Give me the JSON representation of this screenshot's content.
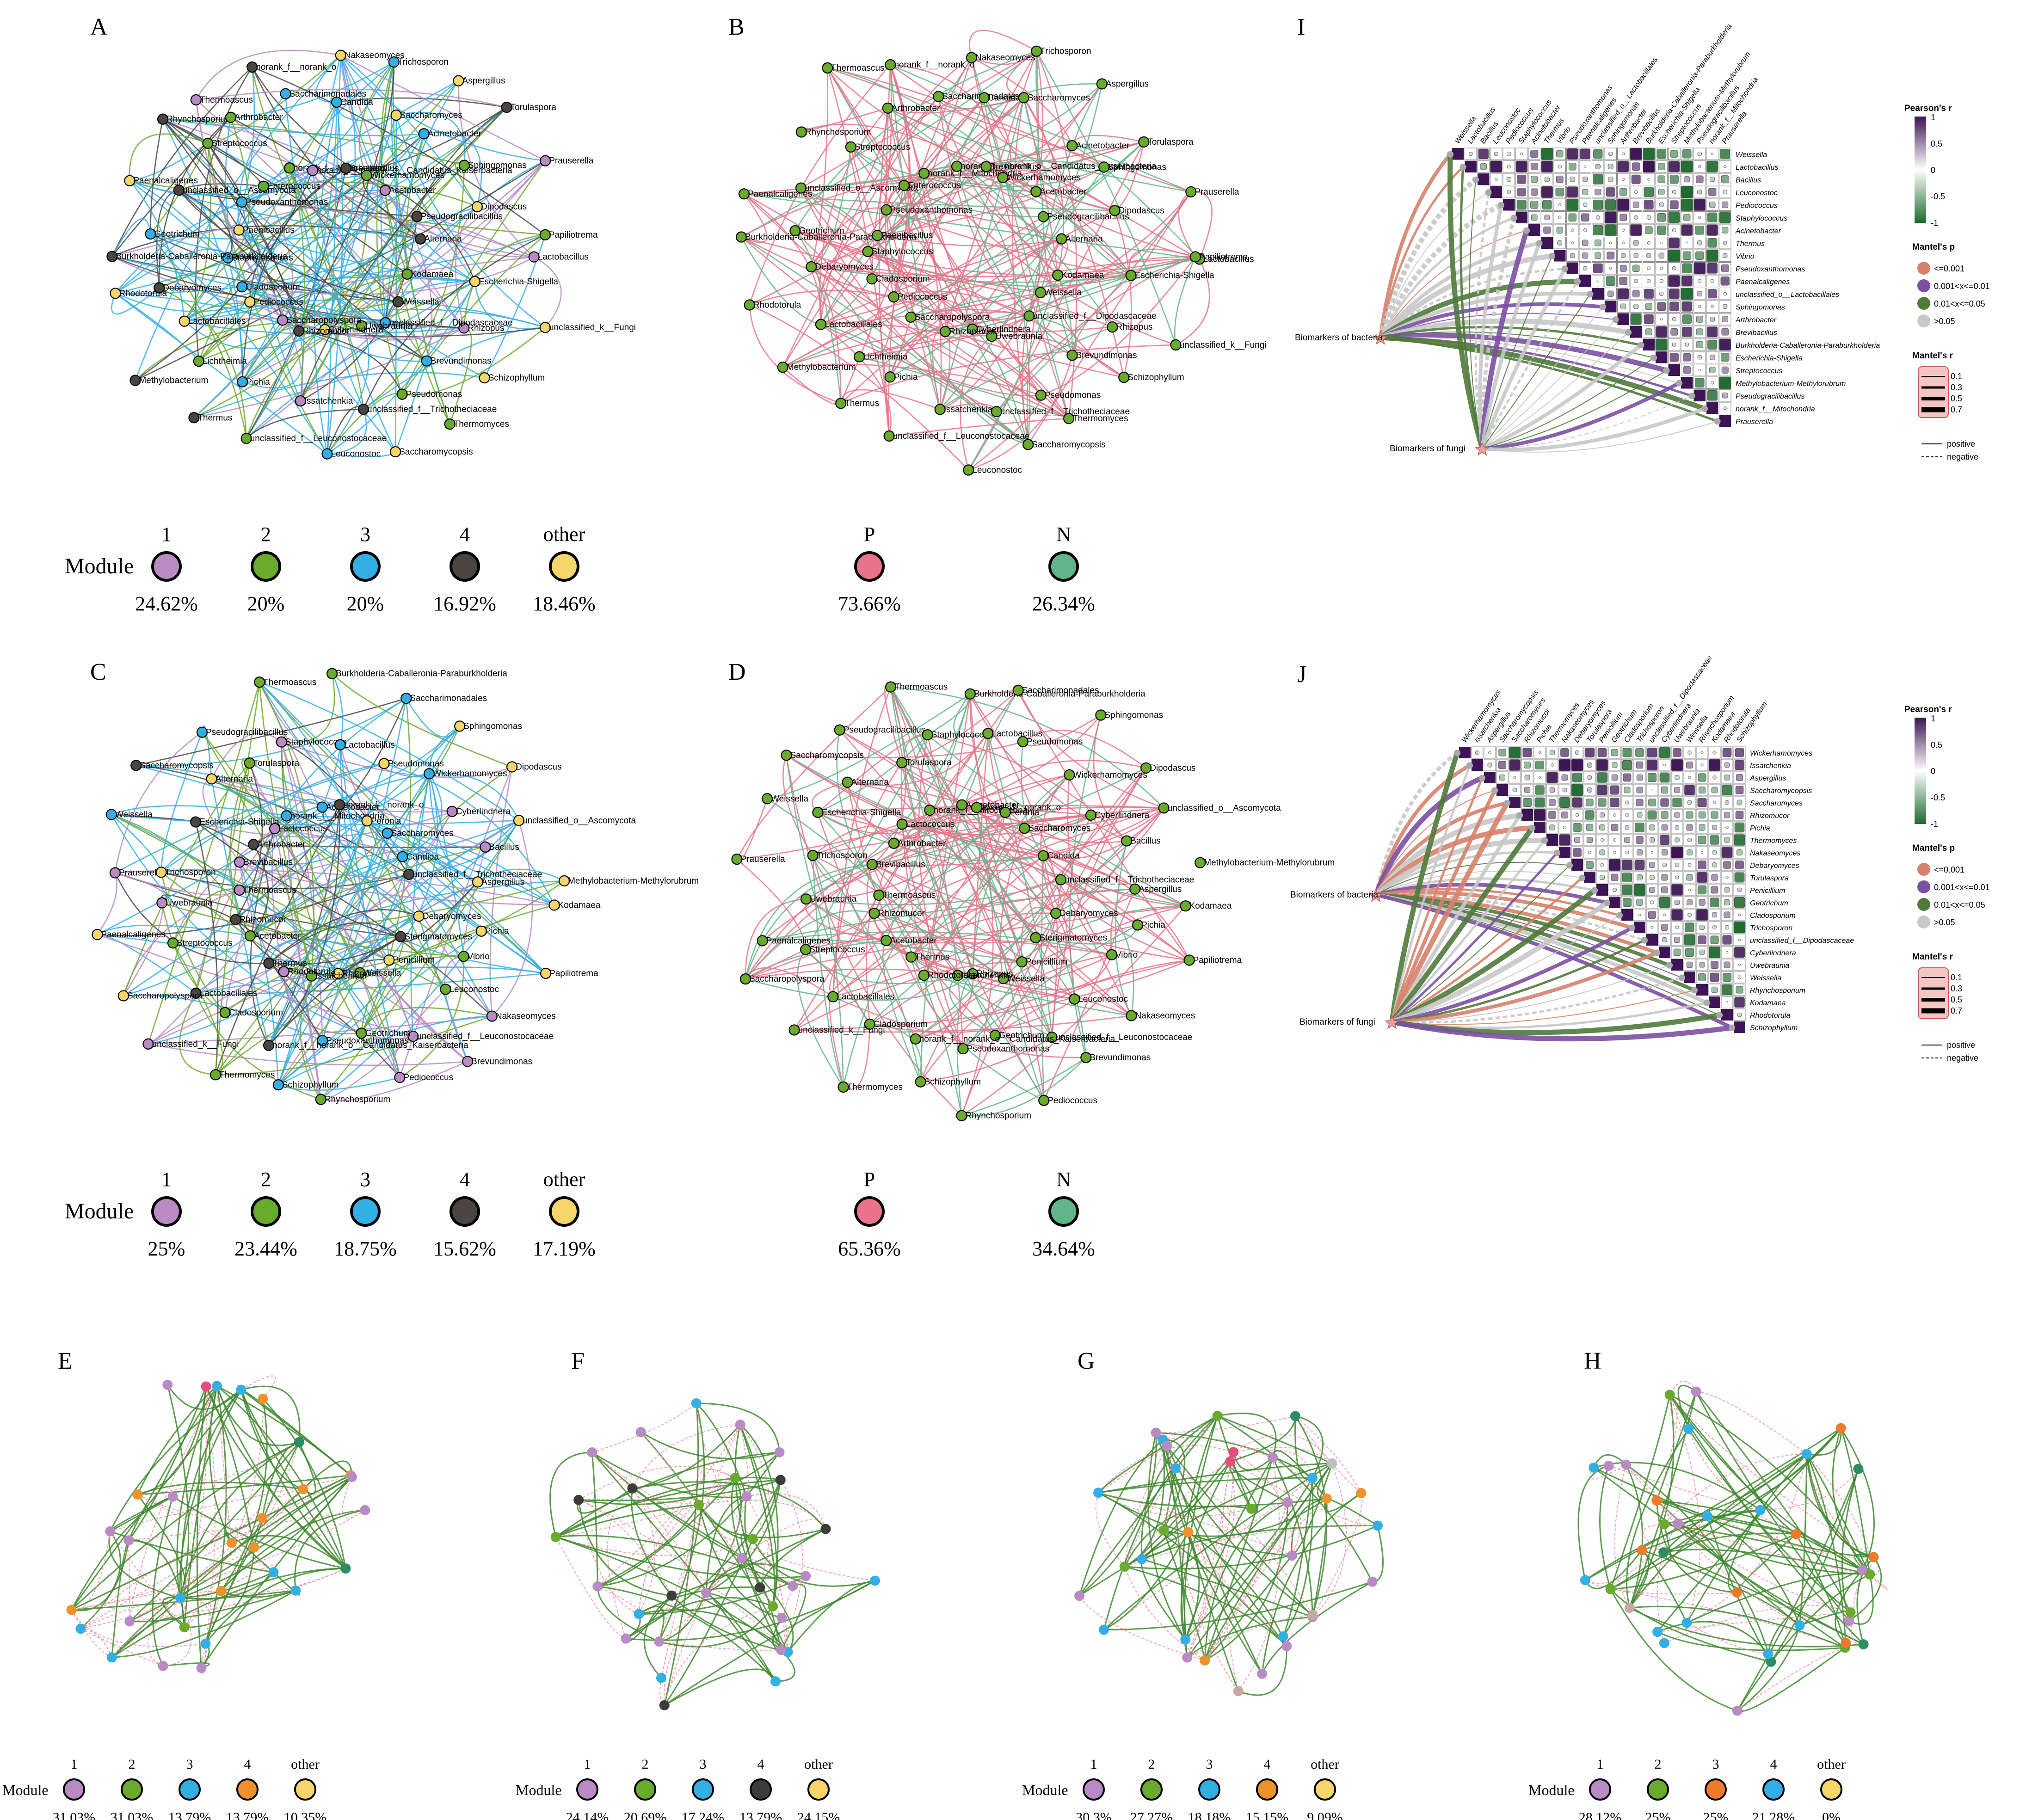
{
  "colors": {
    "module_1": "#b98ac4",
    "module_2": "#6aaa2c",
    "module_3": "#33afe6",
    "module_4": "#4a4540",
    "module_other": "#f6d66b",
    "positive": "#e8738a",
    "negative": "#62b58a",
    "mantel_p1": "#d6826a",
    "mantel_p2": "#7b4fa3",
    "mantel_p3": "#4f7a3a",
    "mantel_p4": "#c8c8c8",
    "pearson_high": "#3d1455",
    "pearson_low": "#1e6b2e"
  },
  "network_panels": [
    {
      "letter": "A",
      "mode": "module",
      "labels": [
        "Lactobacillus",
        "Escherichia-Shigella",
        "Kodamaea",
        "unclassified_k__Fungi",
        "Rhizopus",
        "Weissella",
        "Schizophyllum",
        "Brevundimonas",
        "unclassified_f__Dipodascaceae",
        "Thermomyces",
        "Pseudomonas",
        "Uwebraunia",
        "Saccharomycopsis",
        "unclassified_f__Trichotheciaceae",
        "Cyberlindnera",
        "Leuconostoc",
        "Issatchenkia",
        "Rhizomucor",
        "unclassified_f__Leuconostocaceae",
        "Pichia",
        "Saccharopolyspora",
        "Thermus",
        "Lichtheimia",
        "Pediococcus",
        "Methylobacterium",
        "Lactobacillales",
        "Cladosporium",
        "Rhodotorula",
        "Debaryomyces",
        "Staphylococcus",
        "Burkholderia-Caballeronia-Paraburkholderia",
        "Geotrichum",
        "Paenibacillus",
        "Paenalcaligenes",
        "unclassified_o__Ascomycota",
        "Pseudoxanthomonas",
        "Rhynchosporium",
        "Streptococcus",
        "Enterococcus",
        "Thermoascus",
        "Arthrobacter",
        "norank_f__Mitochondria",
        "norank_f__norank_o",
        "Saccharimonadales",
        "norank_f__norank_o__Candidatus_Kaiserbacteria",
        "Nakaseomyces",
        "Candida",
        "Brevibacillus",
        "Trichosporon",
        "Saccharomyces",
        "Wickerhamomyces",
        "Aspergillus",
        "Acinetobacter",
        "Acetobacter",
        "Torulaspora",
        "Sphingomonas",
        "Pseudogracilibacillus",
        "Prauserella",
        "Dipodascus",
        "Alternaria",
        "Papiliotrema"
      ],
      "legend_title": "Module",
      "legend_items": [
        "1",
        "2",
        "3",
        "4",
        "other"
      ],
      "legend_values": [
        "24.62%",
        "20%",
        "20%",
        "16.92%",
        "18.46%"
      ]
    },
    {
      "letter": "B",
      "mode": "sign",
      "labels": [
        "Lactobacillus",
        "Escherichia-Shigella",
        "Kodamaea",
        "unclassified_k__Fungi",
        "Rhizopus",
        "Weissella",
        "Schizophyllum",
        "Brevundimonas",
        "unclassified_f__Dipodascaceae",
        "Thermomyces",
        "Pseudomonas",
        "Uwebraunia",
        "Saccharomycopsis",
        "unclassified_f__Trichotheciaceae",
        "Cyberlindnera",
        "Leuconostoc",
        "Issatchenkia",
        "Rhizomucor",
        "unclassified_f__Leuconostocaceae",
        "Pichia",
        "Saccharopolyspora",
        "Thermus",
        "Lichtheimia",
        "Pediococcus",
        "Methylobacterium",
        "Lactobacillales",
        "Cladosporium",
        "Rhodotorula",
        "Debaryomyces",
        "Staphylococcus",
        "Burkholderia-Caballeronia-Paraburkholderia",
        "Geotrichum",
        "Paenibacillus",
        "Paenalcaligenes",
        "unclassified_o__Ascomycota",
        "Pseudoxanthomonas",
        "Rhynchosporium",
        "Streptococcus",
        "Enterococcus",
        "Thermoascus",
        "Arthrobacter",
        "norank_f__Mitochondria",
        "norank_f__norank_o",
        "Saccharimonadales",
        "norank_f__norank_o__Candidatus_Kaiserbacteria",
        "Nakaseomyces",
        "Candida",
        "Brevibacillus",
        "Trichosporon",
        "Saccharomyces",
        "Wickerhamomyces",
        "Aspergillus",
        "Acinetobacter",
        "Acetobacter",
        "Torulaspora",
        "Sphingomonas",
        "Pseudogracilibacillus",
        "Prauserella",
        "Dipodascus",
        "Alternaria",
        "Papiliotrema"
      ],
      "legend_title": "",
      "legend_items": [
        "P",
        "N"
      ],
      "legend_values": [
        "73.66%",
        "26.34%"
      ]
    },
    {
      "letter": "C",
      "mode": "module",
      "labels": [
        "Kodamaea",
        "Pichia",
        "Debaryomyces",
        "Papiliotrema",
        "Vibrio",
        "Sterigmatomyces",
        "Nakaseomyces",
        "Leuconostoc",
        "Penicillium",
        "Brevundimonas",
        "unclassified_f__Leuconostocaceae",
        "Weissella",
        "Pediococcus",
        "Geotrichum",
        "Rhizopus",
        "Rhynchosporium",
        "Pseudoxanthomonas",
        "Issatchenkia",
        "Schizophyllum",
        "norank_f__norank_o__Candidatus_Kaiserbacteria",
        "Rhodotorula",
        "Thermomyces",
        "Cladosporium",
        "Thermus",
        "unclassified_k__Fungi",
        "Lactobacillales",
        "Acetobacter",
        "Saccharopolyspora",
        "Streptococcus",
        "Rhizomucor",
        "Paenalcaligenes",
        "Uwebraunia",
        "Thermoascus",
        "Prauserella",
        "Trichosporon",
        "Brevibacillus",
        "Weissella",
        "Escherichia-Shigella",
        "Arthrobacter",
        "Saccharomycopsis",
        "Alternaria",
        "Lactococcus",
        "Pseudogracilibacillus",
        "Torulaspora",
        "norank_f__Mitochondria",
        "Thermoascus",
        "Staphylococcus",
        "Acinetobacter",
        "Burkholderia-Caballeronia-Paraburkholderia",
        "Lactobacillus",
        "norank_f__norank_o",
        "Saccharimonadales",
        "Pseudomonas",
        "Peronia",
        "Sphingomonas",
        "Wickerhamomyces",
        "Saccharomyces",
        "Dipodascus",
        "Cyberlindnera",
        "Candida",
        "unclassified_o__Ascomycota",
        "Bacillus",
        "unclassified_f__Trichotheciaceae",
        "Methylobacterium-Methylorubrum",
        "Aspergillus"
      ],
      "legend_title": "Module",
      "legend_items": [
        "1",
        "2",
        "3",
        "4",
        "other"
      ],
      "legend_values": [
        "25%",
        "23.44%",
        "18.75%",
        "15.62%",
        "17.19%"
      ]
    },
    {
      "letter": "D",
      "mode": "sign",
      "labels": [
        "Kodamaea",
        "Pichia",
        "Debaryomyces",
        "Papiliotrema",
        "Vibrio",
        "Sterigmatomyces",
        "Nakaseomyces",
        "Leuconostoc",
        "Penicillium",
        "Brevundimonas",
        "unclassified_f__Leuconostocaceae",
        "Weissella",
        "Pediococcus",
        "Geotrichum",
        "Rhizopus",
        "Rhynchosporium",
        "Pseudoxanthomonas",
        "Issatchenkia",
        "Schizophyllum",
        "norank_f__norank_o__Candidatus_Kaiserbacteria",
        "Rhodotorula",
        "Thermomyces",
        "Cladosporium",
        "Thermus",
        "unclassified_k__Fungi",
        "Lactobacillales",
        "Acetobacter",
        "Saccharopolyspora",
        "Streptococcus",
        "Rhizomucor",
        "Paenalcaligenes",
        "Uwebraunia",
        "Thermoascus",
        "Prauserella",
        "Trichosporon",
        "Brevibacillus",
        "Weissella",
        "Escherichia-Shigella",
        "Arthrobacter",
        "Saccharomycopsis",
        "Alternaria",
        "Lactococcus",
        "Pseudogracilibacillus",
        "Torulaspora",
        "norank_f__Mitochondria",
        "Thermoascus",
        "Staphylococcus",
        "Acinetobacter",
        "Burkholderia-Caballeronia-Paraburkholderia",
        "Lactobacillus",
        "norank_f__norank_o",
        "Saccharimonadales",
        "Pseudomonas",
        "Peronia",
        "Sphingomonas",
        "Wickerhamomyces",
        "Saccharomyces",
        "Dipodascus",
        "Cyberlindnera",
        "Candida",
        "unclassified_o__Ascomycota",
        "Bacillus",
        "unclassified_f__Trichotheciaceae",
        "Methylobacterium-Methylorubrum",
        "Aspergillus"
      ],
      "legend_title": "",
      "legend_items": [
        "P",
        "N"
      ],
      "legend_values": [
        "65.36%",
        "34.64%"
      ]
    }
  ],
  "small_panels": [
    {
      "letter": "E",
      "legend_title": "Module",
      "legend_items": [
        "1",
        "2",
        "3",
        "4",
        "other"
      ],
      "legend_values": [
        "31.03%",
        "31.03%",
        "13.79%",
        "13.79%",
        "10.35%"
      ],
      "module4_color": "#f0922b"
    },
    {
      "letter": "F",
      "legend_title": "Module",
      "legend_items": [
        "1",
        "2",
        "3",
        "4",
        "other"
      ],
      "legend_values": [
        "24.14%",
        "20.69%",
        "17.24%",
        "13.79%",
        "24.15%"
      ],
      "module4_color": "#3c3c3c"
    },
    {
      "letter": "G",
      "legend_title": "Module",
      "legend_items": [
        "1",
        "2",
        "3",
        "4",
        "other"
      ],
      "legend_values": [
        "30.3%",
        "27.27%",
        "18.18%",
        "15.15%",
        "9.09%"
      ],
      "module4_color": "#f0922b"
    },
    {
      "letter": "H",
      "legend_title": "Module",
      "legend_items": [
        "1",
        "2",
        "3",
        "4",
        "other"
      ],
      "legend_values": [
        "28.12%",
        "25%",
        "25%",
        "21.28%",
        "0%"
      ],
      "module4_color": "#33afe6",
      "module3_color": "#f07a2b"
    }
  ],
  "mantel_panels": [
    {
      "letter": "I",
      "taxa": [
        "Weissella",
        "Lactobacillus",
        "Bacillus",
        "Leuconostoc",
        "Pediococcus",
        "Staphylococcus",
        "Acinetobacter",
        "Thermus",
        "Vibrio",
        "Pseudoxanthomonas",
        "Paenalcaligenes",
        "unclassified_o__Lactobacillales",
        "Sphingomonas",
        "Arthrobacter",
        "Brevibacillus",
        "Burkholderia-Caballeronia-Paraburkholderia",
        "Escherichia-Shigella",
        "Streptococcus",
        "Methylobacterium-Methylorubrum",
        "Pseudogracilibacillus",
        "norank_f__Mitochondria",
        "Prauserella"
      ],
      "source_a": "Biomarkers of bacteria",
      "source_b": "Biomarkers of fungi"
    },
    {
      "letter": "J",
      "taxa": [
        "Wickerhamomyces",
        "Issatchenkia",
        "Aspergillus",
        "Saccharomycopsis",
        "Saccharomyces",
        "Rhizomucor",
        "Pichia",
        "Thermomyces",
        "Nakaseomyces",
        "Debaryomyces",
        "Torulaspora",
        "Penicillium",
        "Geotrichum",
        "Cladosporium",
        "Trichosporon",
        "unclassified_f__Dipodascaceae",
        "Cyberlindnera",
        "Uwebraunia",
        "Weissella",
        "Rhynchosporium",
        "Kodamaea",
        "Rhodotorula",
        "Schizophyllum"
      ],
      "source_a": "Biomarkers of bacteria",
      "source_b": "Biomarkers of fungi"
    }
  ],
  "mantel_legend": {
    "pearson_title": "Pearson's r",
    "pearson_ticks": [
      "1",
      "0.5",
      "0",
      "-0.5",
      "-1"
    ],
    "p_title": "Mantel's p",
    "p_items": [
      "<=0.001",
      "0.001<x<=0.01",
      "0.01<x<=0.05",
      ">0.05"
    ],
    "r_title": "Mantel's r",
    "r_items": [
      "0.1",
      "0.3",
      "0.5",
      "0.7"
    ],
    "line_items": [
      "positive",
      "negative"
    ]
  }
}
